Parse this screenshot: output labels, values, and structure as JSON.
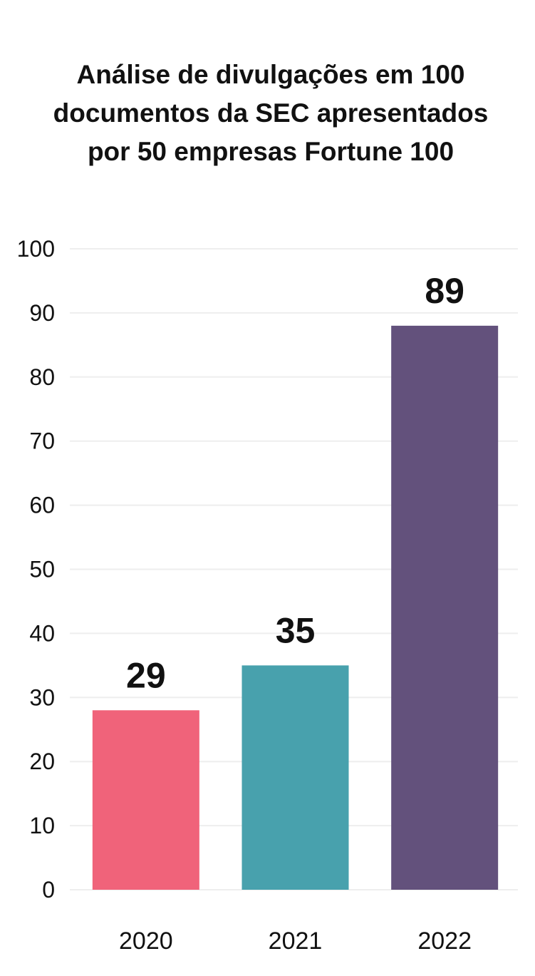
{
  "chart_data": {
    "type": "bar",
    "title": "Análise de divulgações em 100 documentos da SEC apresentados por 50 empresas Fortune 100",
    "categories": [
      "2020",
      "2021",
      "2022"
    ],
    "values": [
      29,
      35,
      89
    ],
    "data_labels": [
      "29",
      "35",
      "89"
    ],
    "colors": [
      "#f0637a",
      "#48a1ad",
      "#63517c"
    ],
    "ylim": [
      0,
      100
    ],
    "yticks": [
      0,
      10,
      20,
      30,
      40,
      50,
      60,
      70,
      80,
      90,
      100
    ],
    "ytick_labels": [
      "0",
      "10",
      "20",
      "30",
      "40",
      "50",
      "60",
      "70",
      "80",
      "90",
      "100"
    ],
    "xlabel": "",
    "ylabel": "",
    "grid": true,
    "legend": "none"
  }
}
